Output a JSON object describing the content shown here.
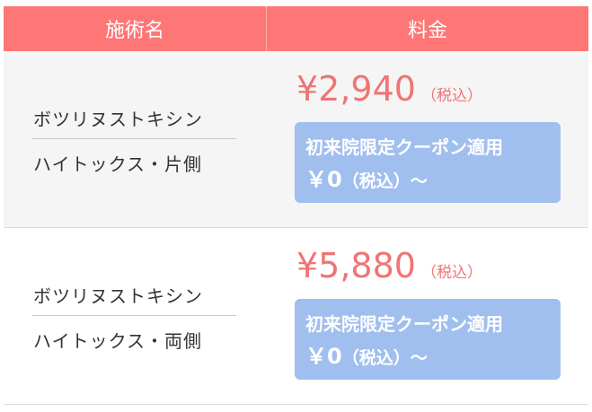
{
  "header": {
    "name": "施術名",
    "price": "料金"
  },
  "rows": [
    {
      "name1": "ボツリヌストキシン",
      "name2": "ハイトックス・片側",
      "price": "¥2,940",
      "tax": "（税込）",
      "coupon_label": "初来院限定クーポン適用",
      "coupon_price": "￥0",
      "coupon_tax": "（税込）～"
    },
    {
      "name1": "ボツリヌストキシン",
      "name2": "ハイトックス・両側",
      "price": "¥5,880",
      "tax": "（税込）",
      "coupon_label": "初来院限定クーポン適用",
      "coupon_price": "￥0",
      "coupon_tax": "（税込）～"
    }
  ],
  "colors": {
    "header": "#ff7676",
    "price": "#f07474",
    "coupon": "#a0bfee"
  }
}
